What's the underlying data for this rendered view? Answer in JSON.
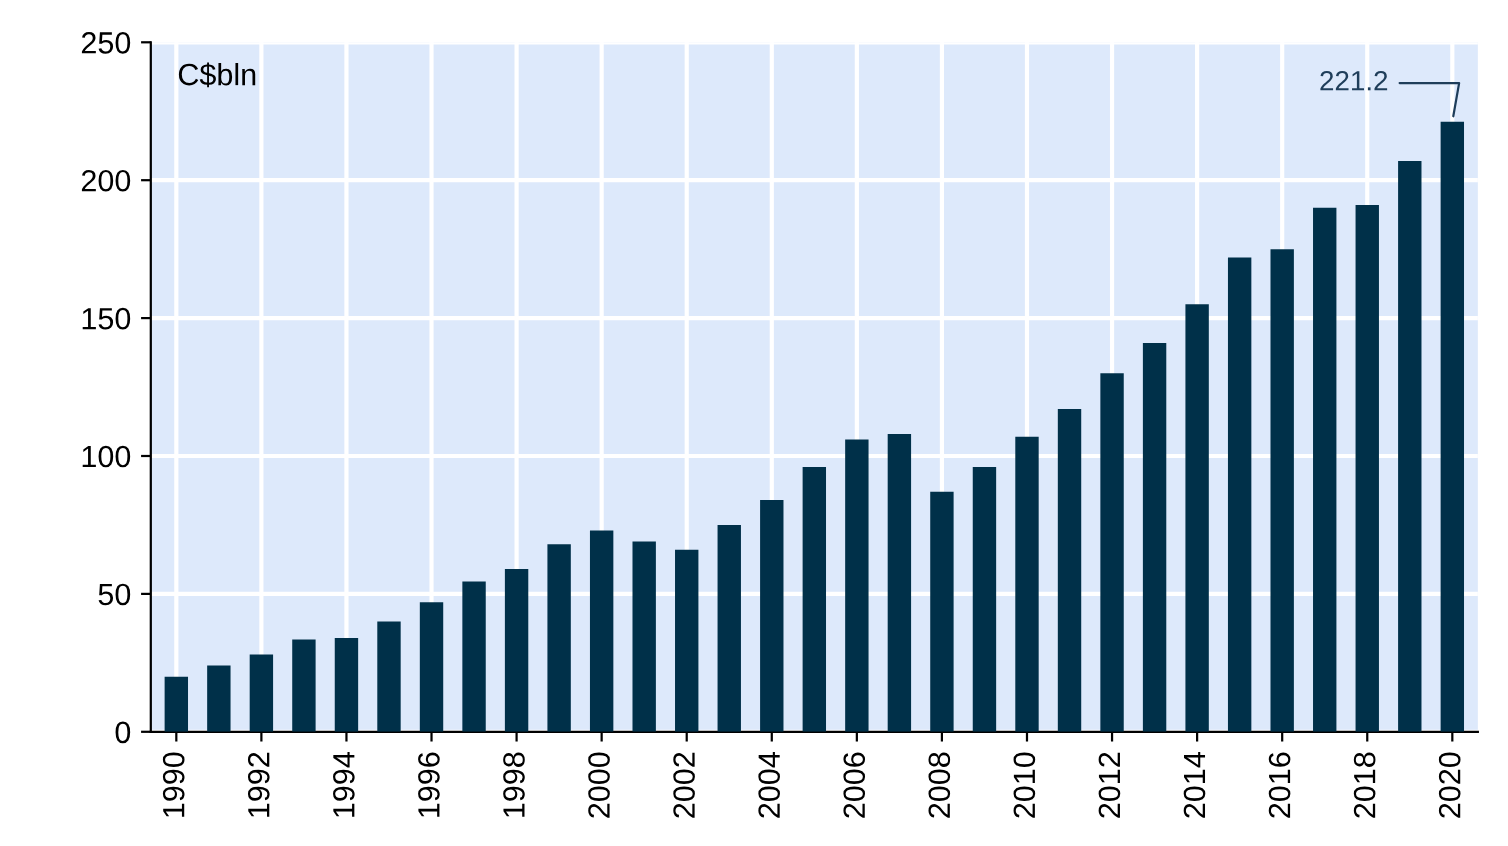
{
  "chart_data": {
    "type": "bar",
    "ylabel": "C$bln",
    "categories": [
      "1990",
      null,
      "1992",
      null,
      "1994",
      null,
      "1996",
      null,
      "1998",
      null,
      "2000",
      null,
      "2002",
      null,
      "2004",
      null,
      "2006",
      null,
      "2008",
      null,
      "2010",
      null,
      "2012",
      null,
      "2014",
      null,
      "2016",
      null,
      "2018",
      null,
      "2020"
    ],
    "values": [
      20,
      24,
      28,
      33.5,
      34,
      40,
      47,
      54.5,
      59,
      68,
      73,
      69,
      66,
      75,
      84,
      96,
      106,
      108,
      87,
      96,
      107,
      117,
      130,
      141,
      155,
      172,
      175,
      190,
      191,
      207,
      221.2
    ],
    "color": "#003049",
    "ylim": [
      0,
      250
    ],
    "yticks": [
      0,
      50,
      100,
      150,
      200,
      250
    ],
    "grid": true,
    "legend": false,
    "annotations": [
      {
        "text": "221.2",
        "x": "2020",
        "y": 221.2
      }
    ]
  }
}
